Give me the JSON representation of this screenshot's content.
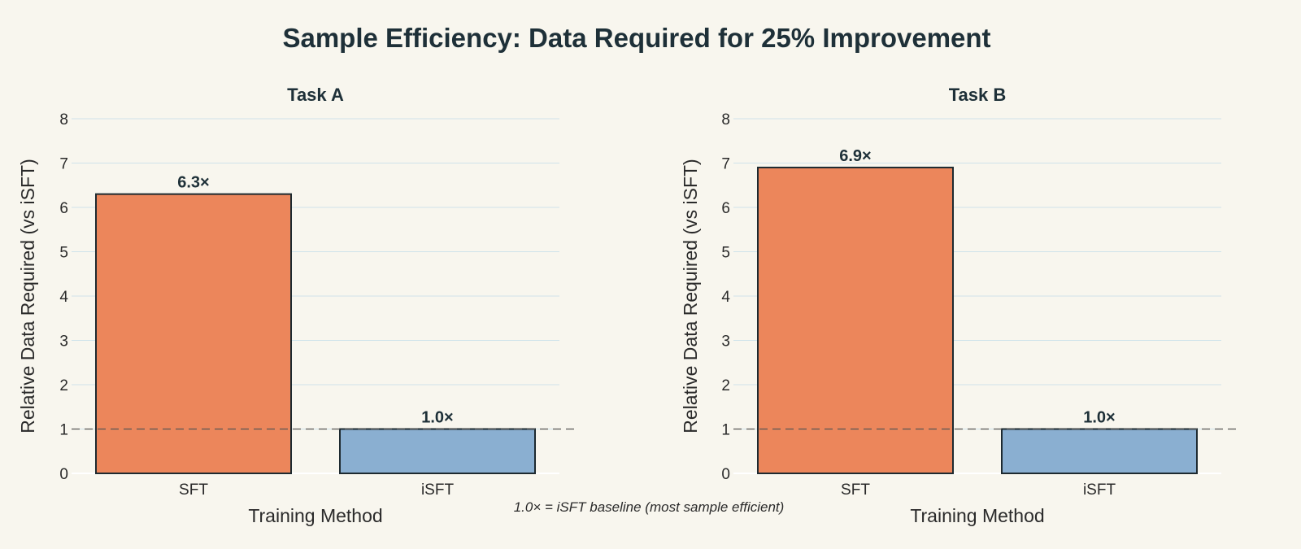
{
  "title": "Sample Efficiency: Data Required for 25% Improvement",
  "footnote": "1.0× = iSFT baseline (most sample efficient)",
  "colors": {
    "background": "#f8f6ee",
    "grid": "#cfe3ea",
    "sft": "#ec865b",
    "isft": "#8aafd1",
    "bar_stroke": "#1e2a30",
    "baseline": "#555555"
  },
  "chart_data": [
    {
      "type": "bar",
      "title": "Task A",
      "categories": [
        "SFT",
        "iSFT"
      ],
      "values": [
        6.3,
        1.0
      ],
      "data_labels": [
        "6.3×",
        "1.0×"
      ],
      "bar_colors": [
        "#ec865b",
        "#8aafd1"
      ],
      "xlabel": "Training Method",
      "ylabel": "Relative Data Required (vs iSFT)",
      "ylim": [
        0,
        8
      ],
      "yticks": [
        0,
        1,
        2,
        3,
        4,
        5,
        6,
        7,
        8
      ],
      "baseline": 1,
      "grid": true
    },
    {
      "type": "bar",
      "title": "Task B",
      "categories": [
        "SFT",
        "iSFT"
      ],
      "values": [
        6.9,
        1.0
      ],
      "data_labels": [
        "6.9×",
        "1.0×"
      ],
      "bar_colors": [
        "#ec865b",
        "#8aafd1"
      ],
      "xlabel": "Training Method",
      "ylabel": "Relative Data Required (vs iSFT)",
      "ylim": [
        0,
        8
      ],
      "yticks": [
        0,
        1,
        2,
        3,
        4,
        5,
        6,
        7,
        8
      ],
      "baseline": 1,
      "grid": true
    }
  ]
}
